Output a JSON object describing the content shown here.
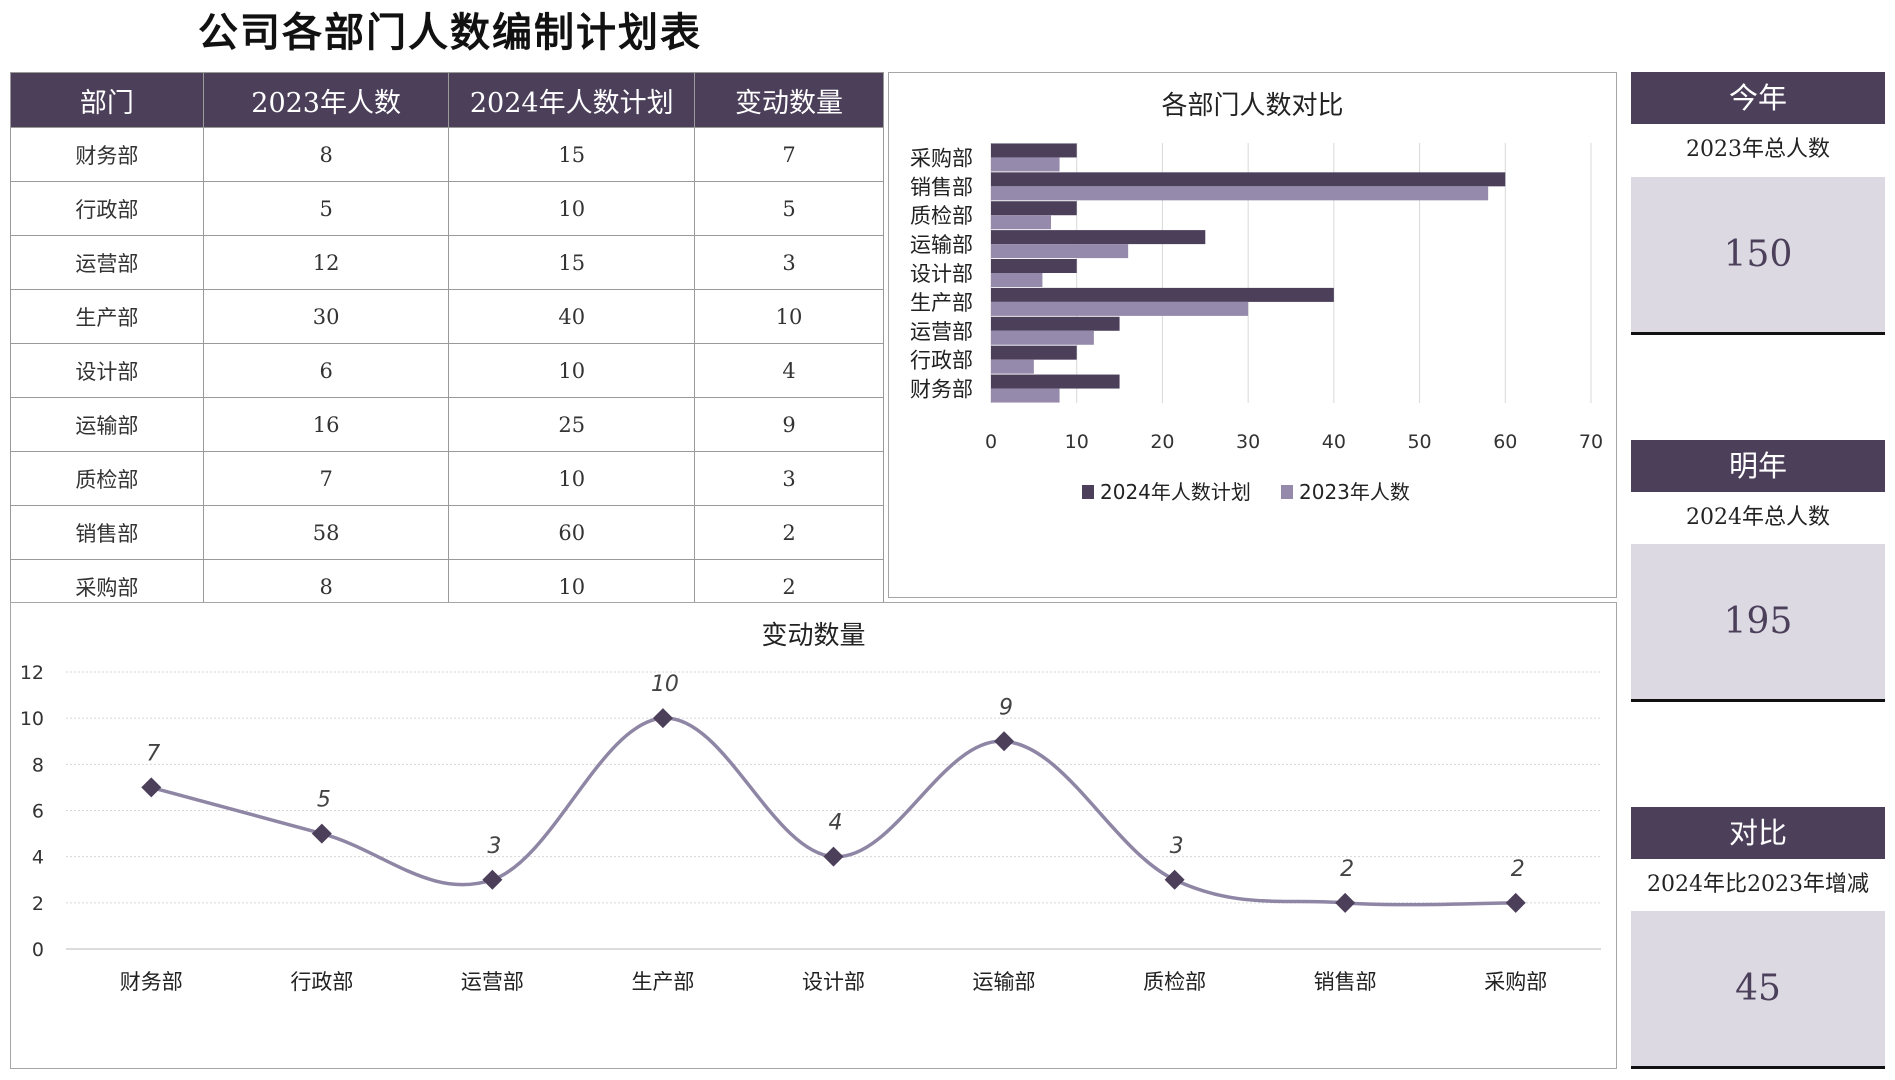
{
  "title": "公司各部门人数编制计划表",
  "table": {
    "headers": [
      "部门",
      "2023年人数",
      "2024年人数计划",
      "变动数量"
    ],
    "rows": [
      [
        "财务部",
        "8",
        "15",
        "7"
      ],
      [
        "行政部",
        "5",
        "10",
        "5"
      ],
      [
        "运营部",
        "12",
        "15",
        "3"
      ],
      [
        "生产部",
        "30",
        "40",
        "10"
      ],
      [
        "设计部",
        "6",
        "10",
        "4"
      ],
      [
        "运输部",
        "16",
        "25",
        "9"
      ],
      [
        "质检部",
        "7",
        "10",
        "3"
      ],
      [
        "销售部",
        "58",
        "60",
        "2"
      ],
      [
        "采购部",
        "8",
        "10",
        "2"
      ]
    ]
  },
  "kpis": [
    {
      "header": "今年",
      "label": "2023年总人数",
      "value": "150"
    },
    {
      "header": "明年",
      "label": "2024年总人数",
      "value": "195"
    },
    {
      "header": "对比",
      "label": "2024年比2023年增减",
      "value": "45"
    }
  ],
  "colors": {
    "primary": "#4b3f5a",
    "secondary": "#958aab",
    "line": "#8e86a4",
    "kpi_bg": "#dcd9e3"
  },
  "chart_data": [
    {
      "type": "bar",
      "orientation": "horizontal",
      "title": "各部门人数对比",
      "categories": [
        "采购部",
        "销售部",
        "质检部",
        "运输部",
        "设计部",
        "生产部",
        "运营部",
        "行政部",
        "财务部"
      ],
      "series": [
        {
          "name": "2024年人数计划",
          "color": "#4b3f5a",
          "values": [
            10,
            60,
            10,
            25,
            10,
            40,
            15,
            10,
            15
          ]
        },
        {
          "name": "2023年人数",
          "color": "#958aab",
          "values": [
            8,
            58,
            7,
            16,
            6,
            30,
            12,
            5,
            8
          ]
        }
      ],
      "xlim": [
        0,
        70
      ],
      "xticks": [
        0,
        10,
        20,
        30,
        40,
        50,
        60,
        70
      ],
      "grid": true,
      "legend_position": "bottom"
    },
    {
      "type": "line",
      "smooth": true,
      "title": "变动数量",
      "categories": [
        "财务部",
        "行政部",
        "运营部",
        "生产部",
        "设计部",
        "运输部",
        "质检部",
        "销售部",
        "采购部"
      ],
      "values": [
        7,
        5,
        3,
        10,
        4,
        9,
        3,
        2,
        2
      ],
      "ylim": [
        0,
        12
      ],
      "yticks": [
        0,
        2,
        4,
        6,
        8,
        10,
        12
      ],
      "marker": "diamond",
      "data_labels": true,
      "grid": true
    }
  ]
}
